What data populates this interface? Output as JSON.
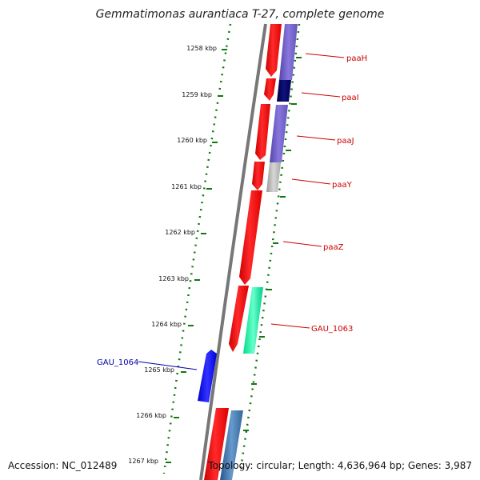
{
  "title": "Gemmatimonas aurantiaca T-27, complete genome",
  "accession": "Accession: NC_012489",
  "summary": "Topology: circular; Length: 4,636,964 bp; Genes: 3,987",
  "ticks": [
    "1258 kbp",
    "1259 kbp",
    "1260 kbp",
    "1261 kbp",
    "1262 kbp",
    "1263 kbp",
    "1264 kbp",
    "1265 kbp",
    "1266 kbp",
    "1267 kbp"
  ],
  "gene_labels": [
    {
      "text": "paaH",
      "color": "#cc0000"
    },
    {
      "text": "paaI",
      "color": "#cc0000"
    },
    {
      "text": "paaJ",
      "color": "#cc0000"
    },
    {
      "text": "paaY",
      "color": "#cc0000"
    },
    {
      "text": "paaZ",
      "color": "#cc0000"
    },
    {
      "text": "GAU_1063",
      "color": "#cc0000"
    },
    {
      "text": "GAU_1064",
      "color": "#0000aa"
    }
  ],
  "colors": {
    "backbone": "#777777",
    "cds_forward": "#ff0000",
    "dotted_ring": "#117711",
    "tick": "#117711",
    "purple": "#7766cc",
    "navy": "#0a0a66",
    "gray": "#bbbbbb",
    "mint": "#22ffaa",
    "steel": "#4477aa",
    "blue": "#0000ff"
  }
}
